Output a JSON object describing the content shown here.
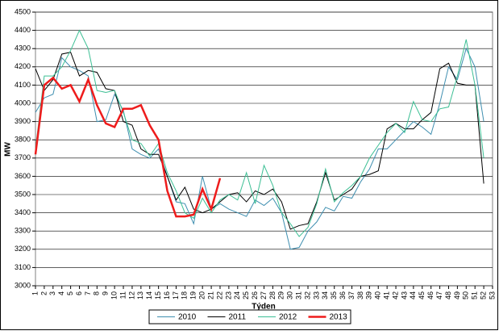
{
  "chart_data": {
    "type": "line",
    "x_label": "Týden",
    "y_label": "MW",
    "x": [
      1,
      2,
      3,
      4,
      5,
      6,
      7,
      8,
      9,
      10,
      11,
      12,
      13,
      14,
      15,
      16,
      17,
      18,
      19,
      20,
      21,
      22,
      23,
      24,
      25,
      26,
      27,
      28,
      29,
      30,
      31,
      32,
      33,
      34,
      35,
      36,
      37,
      38,
      39,
      40,
      41,
      42,
      43,
      44,
      45,
      46,
      47,
      48,
      49,
      50,
      51,
      52
    ],
    "xlim": [
      1,
      53
    ],
    "xticks": [
      1,
      2,
      3,
      4,
      5,
      6,
      7,
      8,
      9,
      10,
      11,
      12,
      13,
      14,
      15,
      16,
      17,
      18,
      19,
      20,
      21,
      22,
      23,
      24,
      25,
      26,
      27,
      28,
      29,
      30,
      31,
      32,
      33,
      34,
      35,
      36,
      37,
      38,
      39,
      40,
      41,
      42,
      43,
      44,
      45,
      46,
      47,
      48,
      49,
      50,
      51,
      52,
      53
    ],
    "ylim": [
      3000,
      4500
    ],
    "yticks": [
      3000,
      3100,
      3200,
      3300,
      3400,
      3500,
      3600,
      3700,
      3800,
      3900,
      4000,
      4100,
      4200,
      4300,
      4400,
      4500
    ],
    "grid": true,
    "legend": "bottom",
    "series": [
      {
        "name": "2010",
        "color": "#3f8fb0",
        "width": 1,
        "values": [
          3950,
          4030,
          4050,
          4250,
          4200,
          4180,
          4150,
          3900,
          3910,
          4050,
          3960,
          3750,
          3720,
          3700,
          3750,
          3600,
          3460,
          3450,
          3340,
          3600,
          3420,
          3450,
          3420,
          3400,
          3380,
          3470,
          3440,
          3480,
          3400,
          3200,
          3210,
          3300,
          3350,
          3430,
          3410,
          3490,
          3480,
          3570,
          3640,
          3750,
          3750,
          3800,
          3850,
          3900,
          3870,
          3830,
          4000,
          4200,
          4130,
          4300,
          4200,
          3900
        ]
      },
      {
        "name": "2011",
        "color": "#000000",
        "width": 1,
        "values": [
          4190,
          4070,
          4130,
          4270,
          4280,
          4150,
          4180,
          4170,
          4080,
          4070,
          3900,
          3880,
          3750,
          3720,
          3720,
          3600,
          3470,
          3540,
          3420,
          3400,
          3420,
          3460,
          3500,
          3510,
          3460,
          3520,
          3500,
          3530,
          3460,
          3310,
          3330,
          3340,
          3460,
          3620,
          3470,
          3500,
          3530,
          3600,
          3610,
          3630,
          3860,
          3890,
          3860,
          3860,
          3910,
          3950,
          4190,
          4220,
          4110,
          4100,
          4100,
          3560
        ]
      },
      {
        "name": "2012",
        "color": "#3cbf94",
        "width": 1,
        "values": [
          3750,
          4150,
          4150,
          4200,
          4290,
          4400,
          4300,
          4070,
          4060,
          4070,
          3950,
          3800,
          3780,
          3710,
          3780,
          3620,
          3520,
          3400,
          3370,
          3480,
          3400,
          3470,
          3500,
          3470,
          3620,
          3450,
          3660,
          3550,
          3400,
          3340,
          3270,
          3320,
          3450,
          3640,
          3460,
          3510,
          3550,
          3600,
          3700,
          3770,
          3840,
          3890,
          3840,
          4010,
          3910,
          3900,
          3970,
          3980,
          4150,
          4350,
          4100,
          3700
        ]
      },
      {
        "name": "2013",
        "color": "#ee1c1c",
        "width": 2.5,
        "values": [
          3720,
          4100,
          4140,
          4080,
          4100,
          4010,
          4130,
          3990,
          3890,
          3870,
          3970,
          3970,
          3990,
          3880,
          3800,
          3520,
          3380,
          3380,
          3390,
          3530,
          3420,
          3590,
          null,
          null,
          null,
          null,
          null,
          null,
          null,
          null,
          null,
          null,
          null,
          null,
          null,
          null,
          null,
          null,
          null,
          null,
          null,
          null,
          null,
          null,
          null,
          null,
          null,
          null,
          null,
          null,
          null,
          null
        ]
      }
    ]
  }
}
